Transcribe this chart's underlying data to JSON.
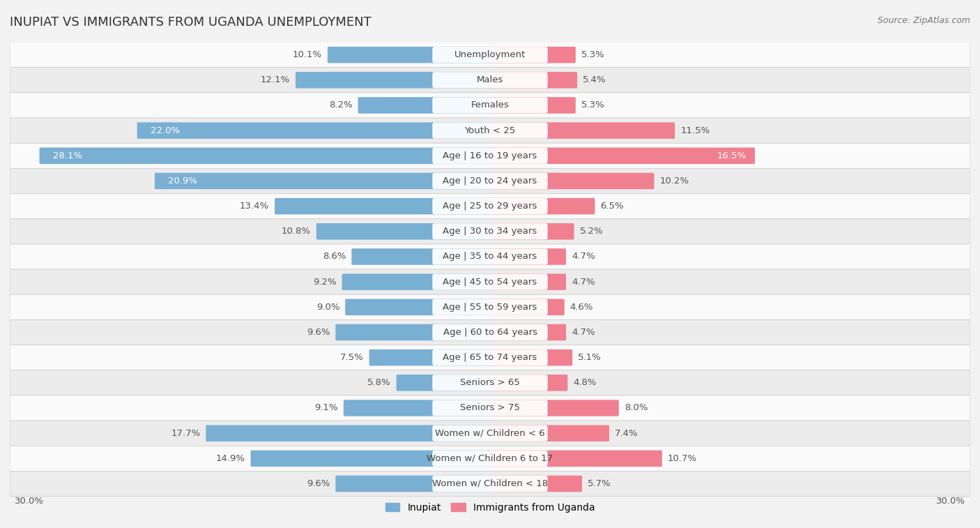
{
  "title": "INUPIAT VS IMMIGRANTS FROM UGANDA UNEMPLOYMENT",
  "source": "Source: ZipAtlas.com",
  "categories": [
    "Unemployment",
    "Males",
    "Females",
    "Youth < 25",
    "Age | 16 to 19 years",
    "Age | 20 to 24 years",
    "Age | 25 to 29 years",
    "Age | 30 to 34 years",
    "Age | 35 to 44 years",
    "Age | 45 to 54 years",
    "Age | 55 to 59 years",
    "Age | 60 to 64 years",
    "Age | 65 to 74 years",
    "Seniors > 65",
    "Seniors > 75",
    "Women w/ Children < 6",
    "Women w/ Children 6 to 17",
    "Women w/ Children < 18"
  ],
  "left_values": [
    10.1,
    12.1,
    8.2,
    22.0,
    28.1,
    20.9,
    13.4,
    10.8,
    8.6,
    9.2,
    9.0,
    9.6,
    7.5,
    5.8,
    9.1,
    17.7,
    14.9,
    9.6
  ],
  "right_values": [
    5.3,
    5.4,
    5.3,
    11.5,
    16.5,
    10.2,
    6.5,
    5.2,
    4.7,
    4.7,
    4.6,
    4.7,
    5.1,
    4.8,
    8.0,
    7.4,
    10.7,
    5.7
  ],
  "left_color": "#7aafd4",
  "right_color": "#f08090",
  "left_label": "Inupiat",
  "right_label": "Immigrants from Uganda",
  "bg_color": "#f2f2f2",
  "row_bg_light": "#fafafa",
  "row_bg_dark": "#ececec",
  "max_val": 30.0,
  "label_fontsize": 9.5,
  "title_fontsize": 13,
  "bar_height": 0.55
}
